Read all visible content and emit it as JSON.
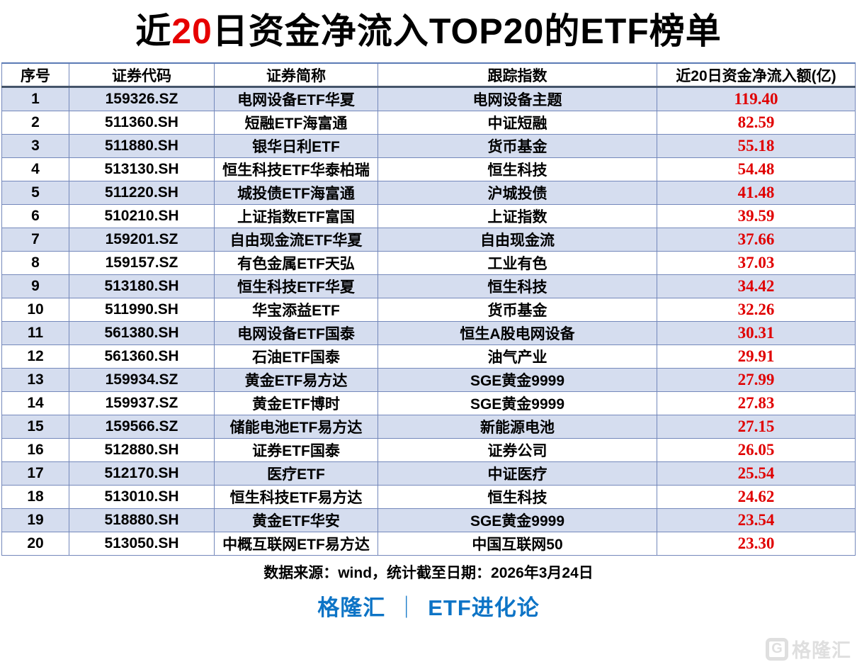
{
  "title": {
    "prefix": "近",
    "highlight": "20",
    "suffix": "日资金净流入TOP20的ETF榜单"
  },
  "chart_data": {
    "type": "table",
    "title": "近20日资金净流入TOP20的ETF榜单",
    "columns": [
      "序号",
      "证券代码",
      "证券简称",
      "跟踪指数",
      "近20日资金净流入额(亿)"
    ],
    "rows": [
      [
        "1",
        "159326.SZ",
        "电网设备ETF华夏",
        "电网设备主题",
        "119.40"
      ],
      [
        "2",
        "511360.SH",
        "短融ETF海富通",
        "中证短融",
        "82.59"
      ],
      [
        "3",
        "511880.SH",
        "银华日利ETF",
        "货币基金",
        "55.18"
      ],
      [
        "4",
        "513130.SH",
        "恒生科技ETF华泰柏瑞",
        "恒生科技",
        "54.48"
      ],
      [
        "5",
        "511220.SH",
        "城投债ETF海富通",
        "沪城投债",
        "41.48"
      ],
      [
        "6",
        "510210.SH",
        "上证指数ETF富国",
        "上证指数",
        "39.59"
      ],
      [
        "7",
        "159201.SZ",
        "自由现金流ETF华夏",
        "自由现金流",
        "37.66"
      ],
      [
        "8",
        "159157.SZ",
        "有色金属ETF天弘",
        "工业有色",
        "37.03"
      ],
      [
        "9",
        "513180.SH",
        "恒生科技ETF华夏",
        "恒生科技",
        "34.42"
      ],
      [
        "10",
        "511990.SH",
        "华宝添益ETF",
        "货币基金",
        "32.26"
      ],
      [
        "11",
        "561380.SH",
        "电网设备ETF国泰",
        "恒生A股电网设备",
        "30.31"
      ],
      [
        "12",
        "561360.SH",
        "石油ETF国泰",
        "油气产业",
        "29.91"
      ],
      [
        "13",
        "159934.SZ",
        "黄金ETF易方达",
        "SGE黄金9999",
        "27.99"
      ],
      [
        "14",
        "159937.SZ",
        "黄金ETF博时",
        "SGE黄金9999",
        "27.83"
      ],
      [
        "15",
        "159566.SZ",
        "储能电池ETF易方达",
        "新能源电池",
        "27.15"
      ],
      [
        "16",
        "512880.SH",
        "证券ETF国泰",
        "证券公司",
        "26.05"
      ],
      [
        "17",
        "512170.SH",
        "医疗ETF",
        "中证医疗",
        "25.54"
      ],
      [
        "18",
        "513010.SH",
        "恒生科技ETF易方达",
        "恒生科技",
        "24.62"
      ],
      [
        "19",
        "518880.SH",
        "黄金ETF华安",
        "SGE黄金9999",
        "23.54"
      ],
      [
        "20",
        "513050.SH",
        "中概互联网ETF易方达",
        "中国互联网50",
        "23.30"
      ]
    ]
  },
  "footer": {
    "source_note": "数据来源：wind，统计截至日期：2026年3月24日",
    "brand_left": "格隆汇",
    "brand_separator": "｜",
    "brand_right": "ETF进化论"
  },
  "watermark": {
    "logo": "G",
    "text": "格隆汇"
  },
  "colors": {
    "title_highlight_red": "#e60000",
    "value_red": "#e00000",
    "row_band_blue": "#d5ddef",
    "grid_border_blue": "#7488bb",
    "header_rule_dark": "#44546a",
    "brand_blue": "#0d74c6",
    "watermark_gray": "#dcdcdc"
  }
}
